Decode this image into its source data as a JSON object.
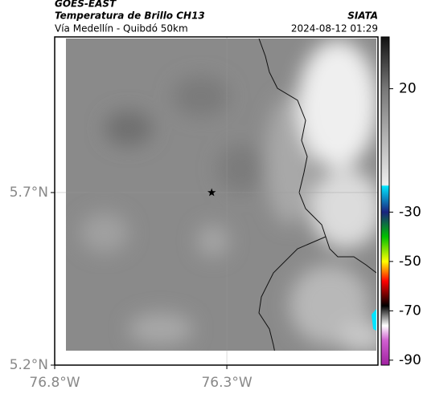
{
  "header": {
    "source": "GOES-EAST",
    "title": "Temperatura de Brillo CH13",
    "credit": "SIATA",
    "route": "Vía Medellín - Quibdó 50km",
    "timestamp": "2024-08-12 01:29"
  },
  "map": {
    "xlim": [
      -76.8,
      -75.861
    ],
    "ylim": [
      5.2,
      6.151
    ],
    "xticks": [
      {
        "value": -76.8,
        "label": "76.8°W"
      },
      {
        "value": -76.3,
        "label": "76.3°W"
      }
    ],
    "yticks": [
      {
        "value": 5.2,
        "label": "5.2°N"
      },
      {
        "value": 5.7,
        "label": "5.7°N"
      }
    ],
    "marker": {
      "lon": -76.344,
      "lat": 5.7
    },
    "grid": true
  },
  "colorbar": {
    "lim": [
      -92,
      41
    ],
    "ticks": [
      20,
      -30,
      -50,
      -70,
      -90
    ],
    "stops": [
      {
        "value": 41,
        "color": "#111111"
      },
      {
        "value": 20,
        "color": "#777777"
      },
      {
        "value": -19,
        "color": "#eeeeee"
      },
      {
        "value": -19.5,
        "color": "#00e5ff"
      },
      {
        "value": -30,
        "color": "#1a237e"
      },
      {
        "value": -40,
        "color": "#00c000"
      },
      {
        "value": -50,
        "color": "#ffff00"
      },
      {
        "value": -58,
        "color": "#ff0000"
      },
      {
        "value": -68,
        "color": "#000000"
      },
      {
        "value": -76,
        "color": "#ffffff"
      },
      {
        "value": -82,
        "color": "#d060d0"
      },
      {
        "value": -92,
        "color": "#a020a0"
      }
    ]
  }
}
